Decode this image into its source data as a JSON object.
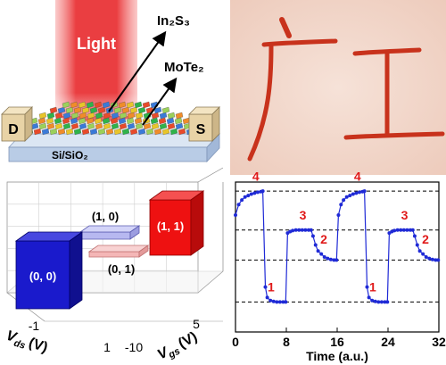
{
  "device": {
    "light_label": "Light",
    "layer_top_label": "In₂S₃",
    "layer_mid_label": "MoTe₂",
    "drain_label": "D",
    "source_label": "S",
    "substrate_label": "Si/SiO₂",
    "colors": {
      "light": "#e8292c",
      "electrode": "#e8d3a6",
      "substrate": "#b9cce6"
    }
  },
  "image": {
    "characters": "广工",
    "colors": {
      "background": "#f1d6ca",
      "ink": "#c8321c"
    }
  },
  "bars3d": {
    "axis_x_label_main": "V",
    "axis_x_label_sub": "ds",
    "axis_x_label_unit": "(V)",
    "axis_y_label_main": "V",
    "axis_y_label_sub": "gs",
    "axis_y_label_unit": "(V)",
    "ticks_ds": [
      "-1",
      "1"
    ],
    "ticks_gs": [
      "-10",
      "5"
    ],
    "states": [
      {
        "label": "(0, 0)",
        "color": "#1a1acc"
      },
      {
        "label": "(1, 0)",
        "color": "#b7b8f0"
      },
      {
        "label": "(0, 1)",
        "color": "#f4b6b6"
      },
      {
        "label": "(1, 1)",
        "color": "#ee1111"
      }
    ]
  },
  "chart_data": {
    "type": "line",
    "xlabel": "Time (a.u.)",
    "ylabel": "",
    "xlim": [
      0,
      32
    ],
    "ylim": [
      0,
      5
    ],
    "x_ticks": [
      "0",
      "8",
      "16",
      "24",
      "32"
    ],
    "levels": [
      {
        "label": "1",
        "y": 1
      },
      {
        "label": "2",
        "y": 2.4
      },
      {
        "label": "3",
        "y": 3.4
      },
      {
        "label": "4",
        "y": 4.7
      }
    ],
    "series": [
      {
        "x": [
          0,
          0.5,
          1,
          1.5,
          2,
          2.5,
          3,
          3.5,
          4,
          4.3,
          4.7,
          5,
          5.5,
          6,
          6.5,
          7,
          7.5,
          7.9,
          8.2,
          8.6,
          9,
          9.5,
          10,
          10.5,
          11,
          11.5,
          11.9,
          12.2,
          12.6,
          13,
          13.5,
          14,
          14.5,
          15,
          15.5,
          15.9,
          16.2,
          16.6,
          17,
          17.5,
          18,
          18.5,
          19,
          19.5,
          20,
          20.3,
          20.7,
          21,
          21.5,
          22,
          22.5,
          23,
          23.5,
          23.9,
          24.2,
          24.6,
          25,
          25.5,
          26,
          26.5,
          27,
          27.5,
          27.9,
          28.2,
          28.6,
          29,
          29.5,
          30,
          30.5,
          31,
          31.5,
          31.9
        ],
        "y": [
          3.9,
          4.25,
          4.4,
          4.5,
          4.55,
          4.6,
          4.63,
          4.66,
          4.68,
          4.7,
          1.5,
          1.15,
          1.05,
          1.02,
          1.0,
          1.0,
          1.0,
          1.0,
          3.3,
          3.35,
          3.38,
          3.4,
          3.4,
          3.4,
          3.4,
          3.4,
          3.4,
          3.2,
          2.9,
          2.7,
          2.6,
          2.5,
          2.45,
          2.42,
          2.4,
          2.4,
          3.9,
          4.25,
          4.4,
          4.5,
          4.55,
          4.6,
          4.63,
          4.66,
          4.68,
          4.7,
          1.5,
          1.15,
          1.05,
          1.02,
          1.0,
          1.0,
          1.0,
          1.0,
          3.3,
          3.35,
          3.38,
          3.4,
          3.4,
          3.4,
          3.4,
          3.4,
          3.4,
          3.2,
          2.9,
          2.7,
          2.6,
          2.5,
          2.45,
          2.42,
          2.4,
          2.4
        ]
      }
    ],
    "level_labels": [
      {
        "text": "4",
        "x": 3.2,
        "y": 5.05
      },
      {
        "text": "3",
        "x": 10.6,
        "y": 3.75
      },
      {
        "text": "2",
        "x": 13.9,
        "y": 2.95
      },
      {
        "text": "1",
        "x": 5.6,
        "y": 1.35
      },
      {
        "text": "4",
        "x": 19.2,
        "y": 5.05
      },
      {
        "text": "3",
        "x": 26.6,
        "y": 3.75
      },
      {
        "text": "2",
        "x": 29.9,
        "y": 2.95
      },
      {
        "text": "1",
        "x": 21.6,
        "y": 1.35
      }
    ],
    "colors": {
      "line": "#1f2ad6",
      "dashed": "#000000",
      "labels": "#e01a1a"
    }
  }
}
